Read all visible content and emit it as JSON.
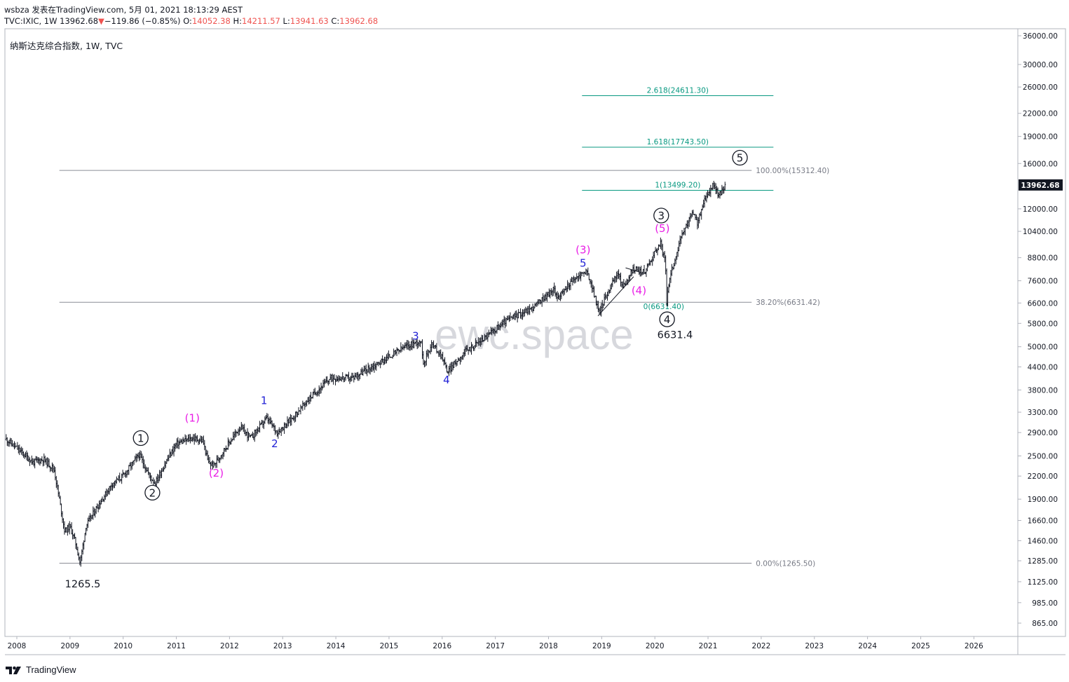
{
  "header": {
    "line1": "wsbza 发表在TradingView.com, 5月 01, 2021 18:13:29 AEST",
    "symbol": "TVC:IXIC, 1W 13962.68",
    "change_arrow": "▼",
    "change": "−119.86 (−0.85%)",
    "o_label": "O:",
    "o_value": "14052.38",
    "h_label": "H:",
    "h_value": "14211.57",
    "l_label": "L:",
    "l_value": "13941.63",
    "c_label": "C:",
    "c_value": "13962.68"
  },
  "chart_title": "纳斯达克综合指数, 1W, TVC",
  "watermark": "ewc.space",
  "footer": {
    "brand": "TradingView"
  },
  "colors": {
    "candle": "#131722",
    "grid_border": "#b2b5be",
    "fib": "#089981",
    "fib_label": "#787b86",
    "magenta": "#e91ee6",
    "blue": "#1f1fd6",
    "black": "#131722",
    "price_tag_bg": "#131722",
    "down": "#ef5350"
  },
  "chart_data": {
    "type": "candlestick",
    "title": "纳斯达克综合指数",
    "scale": "log",
    "ylim": [
      800,
      38000
    ],
    "y_ticks": [
      865,
      985,
      1125,
      1285,
      1460,
      1660,
      1900,
      2200,
      2500,
      2900,
      3300,
      3800,
      4400,
      5000,
      5800,
      6600,
      7600,
      8800,
      10400,
      12000,
      16000,
      19000,
      22000,
      26000,
      30000,
      36000
    ],
    "x_ticks": [
      "2008",
      "2009",
      "2010",
      "2011",
      "2012",
      "2013",
      "2014",
      "2015",
      "2016",
      "2017",
      "2018",
      "2019",
      "2020",
      "2021",
      "2022",
      "2023",
      "2024",
      "2025",
      "2026"
    ],
    "last_price": "13962.68",
    "price_path": [
      [
        2007.8,
        2780
      ],
      [
        2008.1,
        2550
      ],
      [
        2008.3,
        2400
      ],
      [
        2008.5,
        2450
      ],
      [
        2008.7,
        2300
      ],
      [
        2008.8,
        1900
      ],
      [
        2008.9,
        1550
      ],
      [
        2009.0,
        1600
      ],
      [
        2009.1,
        1450
      ],
      [
        2009.19,
        1266
      ],
      [
        2009.3,
        1600
      ],
      [
        2009.5,
        1800
      ],
      [
        2009.8,
        2100
      ],
      [
        2010.0,
        2200
      ],
      [
        2010.3,
        2520
      ],
      [
        2010.5,
        2200
      ],
      [
        2010.6,
        2100
      ],
      [
        2010.8,
        2400
      ],
      [
        2011.0,
        2700
      ],
      [
        2011.3,
        2800
      ],
      [
        2011.5,
        2750
      ],
      [
        2011.6,
        2400
      ],
      [
        2011.7,
        2350
      ],
      [
        2011.9,
        2600
      ],
      [
        2012.2,
        3000
      ],
      [
        2012.4,
        2800
      ],
      [
        2012.7,
        3180
      ],
      [
        2012.9,
        2900
      ],
      [
        2013.2,
        3200
      ],
      [
        2013.5,
        3600
      ],
      [
        2013.9,
        4100
      ],
      [
        2014.3,
        4100
      ],
      [
        2014.8,
        4500
      ],
      [
        2015.3,
        5000
      ],
      [
        2015.6,
        5200
      ],
      [
        2015.65,
        4500
      ],
      [
        2015.8,
        5100
      ],
      [
        2016.0,
        4700
      ],
      [
        2016.1,
        4260
      ],
      [
        2016.4,
        4800
      ],
      [
        2016.8,
        5300
      ],
      [
        2017.2,
        5900
      ],
      [
        2017.7,
        6400
      ],
      [
        2018.1,
        7200
      ],
      [
        2018.2,
        6800
      ],
      [
        2018.4,
        7500
      ],
      [
        2018.7,
        8100
      ],
      [
        2018.8,
        7500
      ],
      [
        2018.95,
        6190
      ],
      [
        2019.1,
        7000
      ],
      [
        2019.3,
        8000
      ],
      [
        2019.4,
        7300
      ],
      [
        2019.6,
        8200
      ],
      [
        2019.8,
        8000
      ],
      [
        2020.1,
        9700
      ],
      [
        2020.2,
        8500
      ],
      [
        2020.22,
        6631
      ],
      [
        2020.3,
        8000
      ],
      [
        2020.5,
        10000
      ],
      [
        2020.7,
        11700
      ],
      [
        2020.8,
        11000
      ],
      [
        2020.95,
        12800
      ],
      [
        2021.1,
        14100
      ],
      [
        2021.2,
        13000
      ],
      [
        2021.25,
        13400
      ],
      [
        2021.33,
        13962
      ]
    ],
    "fib_retracement": [
      {
        "label": "100.00%(15312.40)",
        "value": 15312.4
      },
      {
        "label": "38.20%(6631.42)",
        "value": 6631.42
      },
      {
        "label": "0.00%(1265.50)",
        "value": 1265.5
      }
    ],
    "fib_extension": [
      {
        "label": "2.618(24611.30)",
        "value": 24611.3
      },
      {
        "label": "1.618(17743.50)",
        "value": 17743.5
      },
      {
        "label": "1(13499.20)",
        "value": 13499.2
      },
      {
        "label": "0(6631.40)",
        "value": 6631.4
      }
    ],
    "wave_labels_circled": [
      {
        "text": "1",
        "x": 2010.33,
        "y": 2800
      },
      {
        "text": "2",
        "x": 2010.55,
        "y": 1980
      },
      {
        "text": "3",
        "x": 2020.12,
        "y": 11500
      },
      {
        "text": "4",
        "x": 2020.23,
        "y": 5950
      },
      {
        "text": "5",
        "x": 2021.6,
        "y": 16600
      }
    ],
    "wave_labels_magenta": [
      {
        "text": "(1)",
        "x": 2011.3,
        "y": 3180
      },
      {
        "text": "(2)",
        "x": 2011.75,
        "y": 2240
      },
      {
        "text": "(3)",
        "x": 2018.65,
        "y": 9250
      },
      {
        "text": "(4)",
        "x": 2019.7,
        "y": 7150
      },
      {
        "text": "(5)",
        "x": 2020.14,
        "y": 10600
      }
    ],
    "wave_labels_blue": [
      {
        "text": "1",
        "x": 2012.65,
        "y": 3550
      },
      {
        "text": "2",
        "x": 2012.85,
        "y": 2700
      },
      {
        "text": "3",
        "x": 2015.5,
        "y": 5350
      },
      {
        "text": "4",
        "x": 2016.08,
        "y": 4050
      },
      {
        "text": "5",
        "x": 2018.65,
        "y": 8500
      }
    ],
    "price_annotations": [
      {
        "text": "1265.5",
        "x": 2009.24,
        "y": 1110
      },
      {
        "text": "6631.4",
        "x": 2020.38,
        "y": 5400
      }
    ],
    "trendlines": [
      {
        "from": [
          2018.93,
          6080
        ],
        "to": [
          2019.6,
          7800
        ]
      },
      {
        "from": [
          2019.45,
          8250
        ],
        "to": [
          2019.75,
          8000
        ]
      }
    ]
  }
}
